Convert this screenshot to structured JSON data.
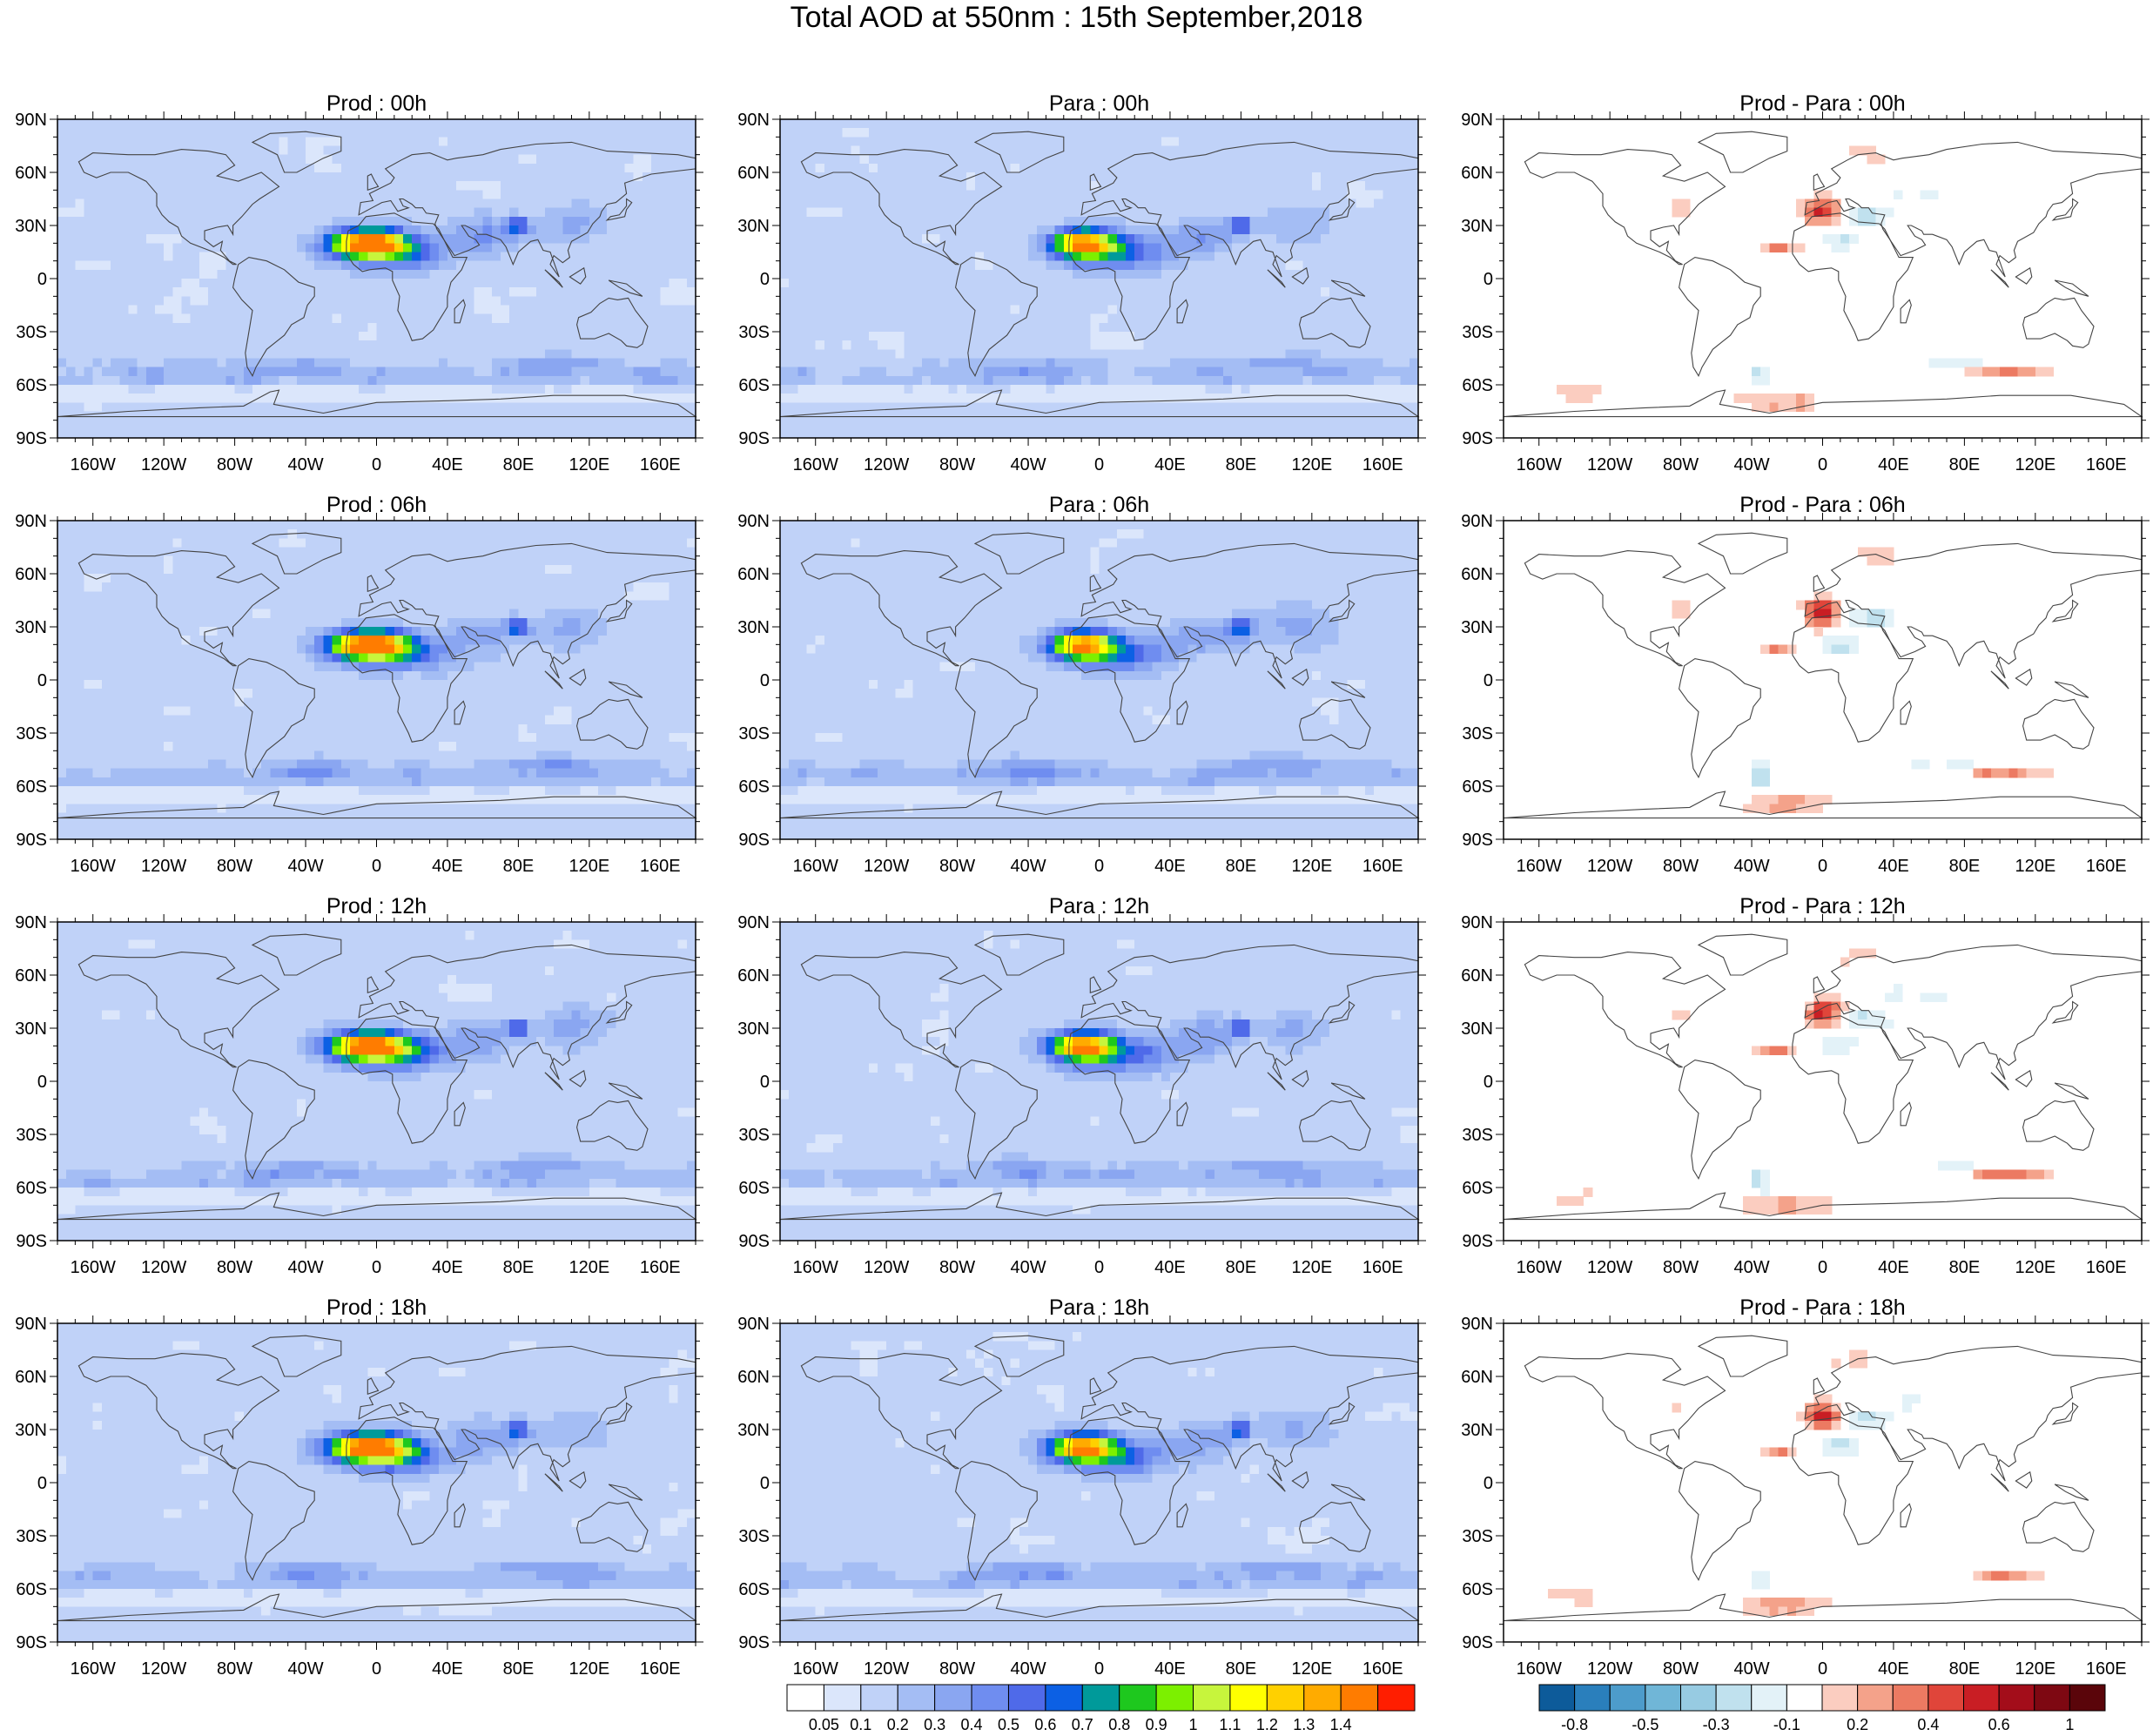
{
  "title": "Total AOD at 550nm : 15th September,2018",
  "lat_labels": [
    "90N",
    "60N",
    "30N",
    "0",
    "30S",
    "60S",
    "90S"
  ],
  "lon_labels": [
    "160W",
    "120W",
    "80W",
    "40W",
    "0",
    "40E",
    "80E",
    "120E",
    "160E"
  ],
  "panels": [
    {
      "title": "Prod : 00h",
      "kind": "prod"
    },
    {
      "title": "Para : 00h",
      "kind": "para"
    },
    {
      "title": "Prod - Para : 00h",
      "kind": "diff"
    },
    {
      "title": "Prod : 06h",
      "kind": "prod"
    },
    {
      "title": "Para : 06h",
      "kind": "para"
    },
    {
      "title": "Prod - Para : 06h",
      "kind": "diff"
    },
    {
      "title": "Prod : 12h",
      "kind": "prod"
    },
    {
      "title": "Para : 12h",
      "kind": "para"
    },
    {
      "title": "Prod - Para : 12h",
      "kind": "diff"
    },
    {
      "title": "Prod : 18h",
      "kind": "prod"
    },
    {
      "title": "Para : 18h",
      "kind": "para"
    },
    {
      "title": "Prod - Para : 18h",
      "kind": "diff"
    }
  ],
  "aod_colorbar": {
    "labels": [
      "0.05",
      "0.1",
      "0.2",
      "0.3",
      "0.4",
      "0.5",
      "0.6",
      "0.7",
      "0.8",
      "0.9",
      "1",
      "1.1",
      "1.2",
      "1.3",
      "1.4"
    ],
    "colors": [
      "#ffffff",
      "#dbe6fb",
      "#c0d2f8",
      "#a4bdf4",
      "#8aa6f1",
      "#6f8df0",
      "#4f6ae9",
      "#0c60e4",
      "#009a9a",
      "#1ec81e",
      "#7cf000",
      "#c7f53c",
      "#ffff00",
      "#ffd000",
      "#ffab00",
      "#ff7c00",
      "#ff1e00"
    ]
  },
  "diff_colorbar": {
    "labels": [
      "-0.8",
      "-0.5",
      "-0.3",
      "-0.1",
      "0.2",
      "0.4",
      "0.6",
      "1"
    ],
    "colors": [
      "#0d5b9a",
      "#2a7fbc",
      "#4d9ccb",
      "#70b6d7",
      "#97cbe2",
      "#c0e1ee",
      "#e3f2f8",
      "#ffffff",
      "#fbcdc0",
      "#f4a28a",
      "#ec7a62",
      "#e0453a",
      "#c91e24",
      "#a30d1a",
      "#7e0812",
      "#5a050a"
    ]
  },
  "colors": {
    "ocean_background": "#dbe6fb",
    "background": "#ffffff",
    "coastline": "#444444"
  }
}
